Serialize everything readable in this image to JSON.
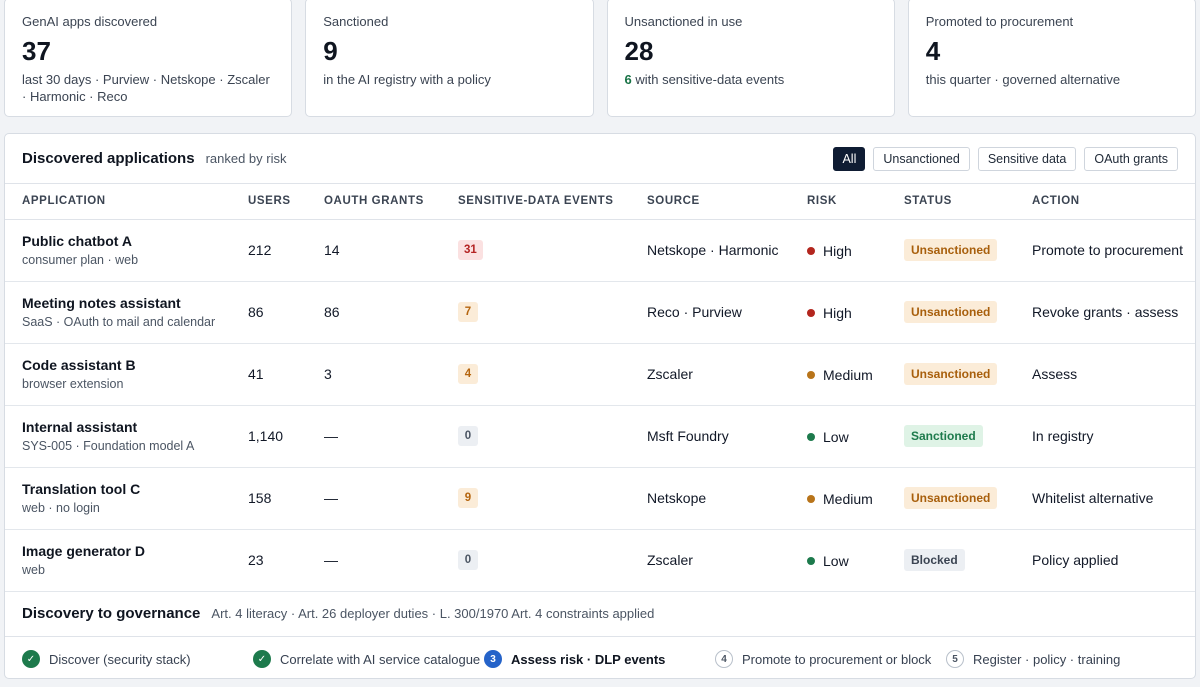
{
  "kpis": [
    {
      "label": "GenAI apps discovered",
      "value": "37",
      "sub": "last 30 days · Purview · Netskope · Zscaler · Harmonic · Reco"
    },
    {
      "label": "Sanctioned",
      "value": "9",
      "sub": "in the AI registry with a policy"
    },
    {
      "label": "Unsanctioned in use",
      "value": "28",
      "sub_highlight": "6",
      "sub": " with sensitive-data events"
    },
    {
      "label": "Promoted to procurement",
      "value": "4",
      "sub": "this quarter · governed alternative"
    }
  ],
  "apps_panel": {
    "title": "Discovered applications",
    "subtitle": "ranked by risk",
    "filters": [
      "All",
      "Unsanctioned",
      "Sensitive data",
      "OAuth grants"
    ],
    "active_filter": "All",
    "columns": [
      "APPLICATION",
      "USERS",
      "OAUTH GRANTS",
      "SENSITIVE-DATA EVENTS",
      "SOURCE",
      "RISK",
      "STATUS",
      "ACTION"
    ],
    "rows": [
      {
        "name": "Public chatbot A",
        "desc": "consumer plan · web",
        "users": "212",
        "oauth": "14",
        "events": "31",
        "events_level": "red",
        "source": "Netskope · Harmonic",
        "risk": "High",
        "risk_level": "high",
        "status": "Unsanctioned",
        "status_kind": "unsanctioned",
        "action": "Promote to procurement"
      },
      {
        "name": "Meeting notes assistant",
        "desc": "SaaS · OAuth to mail and calendar",
        "users": "86",
        "oauth": "86",
        "events": "7",
        "events_level": "amber",
        "source": "Reco · Purview",
        "risk": "High",
        "risk_level": "high",
        "status": "Unsanctioned",
        "status_kind": "unsanctioned",
        "action": "Revoke grants · assess"
      },
      {
        "name": "Code assistant B",
        "desc": "browser extension",
        "users": "41",
        "oauth": "3",
        "events": "4",
        "events_level": "amber",
        "source": "Zscaler",
        "risk": "Medium",
        "risk_level": "medium",
        "status": "Unsanctioned",
        "status_kind": "unsanctioned",
        "action": "Assess"
      },
      {
        "name": "Internal assistant",
        "desc": "SYS-005 · Foundation model A",
        "users": "1,140",
        "oauth": "—",
        "events": "0",
        "events_level": "gray",
        "source": "Msft Foundry",
        "risk": "Low",
        "risk_level": "low",
        "status": "Sanctioned",
        "status_kind": "sanctioned",
        "action": "In registry"
      },
      {
        "name": "Translation tool C",
        "desc": "web · no login",
        "users": "158",
        "oauth": "—",
        "events": "9",
        "events_level": "amber",
        "source": "Netskope",
        "risk": "Medium",
        "risk_level": "medium",
        "status": "Unsanctioned",
        "status_kind": "unsanctioned",
        "action": "Whitelist alternative"
      },
      {
        "name": "Image generator D",
        "desc": "web",
        "users": "23",
        "oauth": "—",
        "events": "0",
        "events_level": "gray",
        "source": "Zscaler",
        "risk": "Low",
        "risk_level": "low",
        "status": "Blocked",
        "status_kind": "blocked",
        "action": "Policy applied"
      }
    ]
  },
  "governance": {
    "title": "Discovery to governance",
    "subtitle": "Art. 4 literacy · Art. 26 deployer duties · L. 300/1970 Art. 4 constraints applied",
    "steps": [
      {
        "icon": "✓",
        "label": "Discover (security stack)",
        "state": "done"
      },
      {
        "icon": "✓",
        "label": "Correlate with AI service catalogue",
        "state": "done"
      },
      {
        "icon": "3",
        "label": "Assess risk · DLP events",
        "state": "current"
      },
      {
        "icon": "4",
        "label": "Promote to procurement or block",
        "state": "todo"
      },
      {
        "icon": "5",
        "label": "Register · policy · training",
        "state": "todo"
      }
    ]
  }
}
